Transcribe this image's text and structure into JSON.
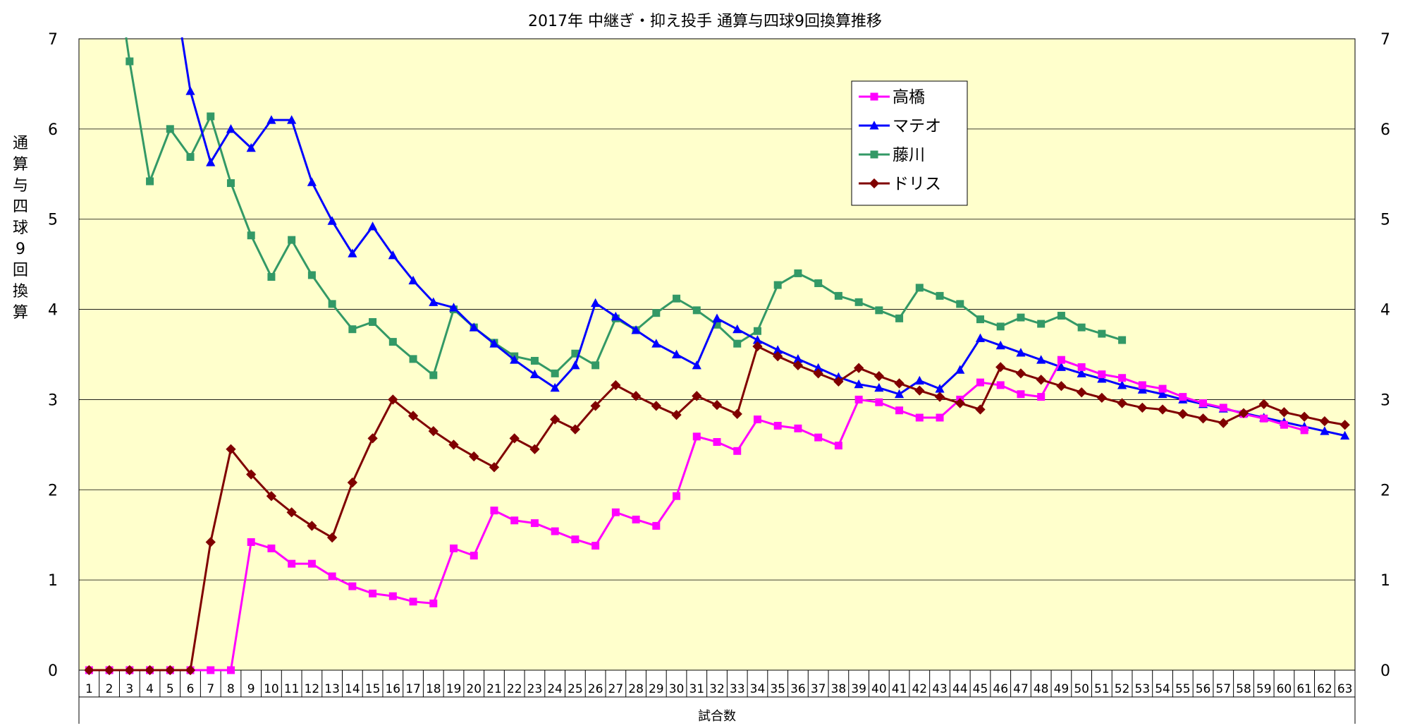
{
  "chart_data": {
    "type": "line",
    "title": "2017年 中継ぎ・抑え投手 通算与四球9回換算推移",
    "xlabel": "試合数",
    "ylabel": "通算与四球9回換算",
    "ylim": [
      0,
      7
    ],
    "yticks": [
      0,
      1,
      2,
      3,
      4,
      5,
      6,
      7
    ],
    "grid": true,
    "legend_position": "top-right",
    "plot_background": "#ffffcc",
    "categories": [
      1,
      2,
      3,
      4,
      5,
      6,
      7,
      8,
      9,
      10,
      11,
      12,
      13,
      14,
      15,
      16,
      17,
      18,
      19,
      20,
      21,
      22,
      23,
      24,
      25,
      26,
      27,
      28,
      29,
      30,
      31,
      32,
      33,
      34,
      35,
      36,
      37,
      38,
      39,
      40,
      41,
      42,
      43,
      44,
      45,
      46,
      47,
      48,
      49,
      50,
      51,
      52,
      53,
      54,
      55,
      56,
      57,
      58,
      59,
      60,
      61,
      62,
      63
    ],
    "series": [
      {
        "name": "高橋",
        "color": "#ff00ff",
        "marker": "square",
        "values": [
          0,
          0,
          0,
          0,
          0,
          0,
          0,
          0,
          1.42,
          1.35,
          1.18,
          1.18,
          1.04,
          0.93,
          0.85,
          0.82,
          0.76,
          0.74,
          1.35,
          1.27,
          1.77,
          1.66,
          1.63,
          1.54,
          1.45,
          1.38,
          1.75,
          1.67,
          1.6,
          1.93,
          2.59,
          2.53,
          2.43,
          2.78,
          2.71,
          2.68,
          2.58,
          2.49,
          3.0,
          2.97,
          2.88,
          2.8,
          2.8,
          3.0,
          3.19,
          3.16,
          3.06,
          3.03,
          3.44,
          3.36,
          3.28,
          3.24,
          3.16,
          3.12,
          3.03,
          2.96,
          2.91,
          2.84,
          2.79,
          2.72,
          2.66,
          null,
          null
        ]
      },
      {
        "name": "マテオ",
        "color": "#0000ff",
        "marker": "triangle",
        "values": [
          null,
          null,
          null,
          null,
          null,
          6.42,
          5.63,
          6.0,
          5.79,
          6.1,
          6.1,
          5.41,
          4.98,
          4.62,
          4.92,
          4.6,
          4.32,
          4.08,
          4.02,
          3.8,
          3.62,
          3.44,
          3.28,
          3.13,
          3.38,
          4.07,
          3.92,
          3.77,
          3.62,
          3.5,
          3.38,
          3.9,
          3.78,
          3.66,
          3.55,
          3.45,
          3.35,
          3.25,
          3.17,
          3.13,
          3.06,
          3.21,
          3.12,
          3.33,
          3.68,
          3.6,
          3.52,
          3.44,
          3.36,
          3.29,
          3.23,
          3.16,
          3.11,
          3.06,
          3.0,
          2.95,
          2.9,
          2.85,
          2.8,
          2.75,
          2.7,
          2.65,
          2.6
        ]
      },
      {
        "name": "藤川",
        "color": "#339966",
        "marker": "square",
        "values": [
          null,
          null,
          6.75,
          5.42,
          6.0,
          5.69,
          6.14,
          5.4,
          4.82,
          4.36,
          4.77,
          4.38,
          4.06,
          3.78,
          3.86,
          3.64,
          3.45,
          3.27,
          4.0,
          3.8,
          3.63,
          3.48,
          3.43,
          3.29,
          3.51,
          3.38,
          3.9,
          3.77,
          3.96,
          4.12,
          3.99,
          3.83,
          3.62,
          3.76,
          4.27,
          4.4,
          4.29,
          4.15,
          4.08,
          3.99,
          3.9,
          4.24,
          4.15,
          4.06,
          3.89,
          3.81,
          3.91,
          3.84,
          3.93,
          3.8,
          3.73,
          3.66,
          null,
          null,
          null,
          null,
          null,
          null,
          null,
          null,
          null,
          null,
          null
        ]
      },
      {
        "name": "ドリス",
        "color": "#800000",
        "marker": "diamond",
        "values": [
          0,
          0,
          0,
          0,
          0,
          0,
          1.42,
          2.45,
          2.17,
          1.93,
          1.75,
          1.6,
          1.47,
          2.08,
          2.57,
          3.0,
          2.82,
          2.65,
          2.5,
          2.37,
          2.25,
          2.57,
          2.45,
          2.78,
          2.67,
          2.93,
          3.16,
          3.04,
          2.93,
          2.83,
          3.04,
          2.94,
          2.84,
          3.59,
          3.48,
          3.38,
          3.29,
          3.2,
          3.35,
          3.26,
          3.18,
          3.1,
          3.03,
          2.96,
          2.89,
          3.36,
          3.29,
          3.22,
          3.15,
          3.08,
          3.02,
          2.96,
          2.91,
          2.89,
          2.84,
          2.79,
          2.74,
          2.85,
          2.95,
          2.86,
          2.81,
          2.76,
          2.72
        ]
      }
    ]
  }
}
